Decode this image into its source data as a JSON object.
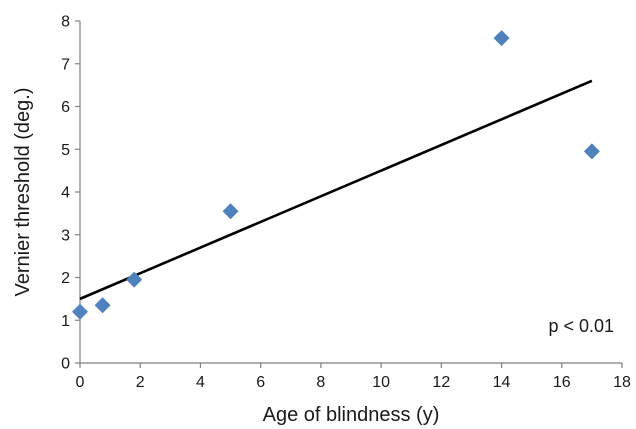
{
  "chart_data": {
    "type": "scatter",
    "title": "",
    "xlabel": "Age of blindness (y)",
    "ylabel": "Vernier threshold (deg.)",
    "xlim": [
      0,
      18
    ],
    "ylim": [
      0,
      8
    ],
    "xticks": [
      0,
      2,
      4,
      6,
      8,
      10,
      12,
      14,
      16,
      18
    ],
    "yticks": [
      0,
      1,
      2,
      3,
      4,
      5,
      6,
      7,
      8
    ],
    "grid": false,
    "legend": "none",
    "marker": "diamond",
    "marker_color": "#4f81bd",
    "series": [
      {
        "x": [
          0.0,
          0.75,
          1.8,
          5.0,
          14.0,
          17.0
        ],
        "y": [
          1.2,
          1.35,
          1.95,
          3.55,
          7.6,
          4.95
        ]
      }
    ],
    "trendline": {
      "type": "linear",
      "color": "#000000",
      "x": [
        0,
        17
      ],
      "y": [
        1.5,
        6.6
      ]
    },
    "annotation": "p < 0.01"
  }
}
